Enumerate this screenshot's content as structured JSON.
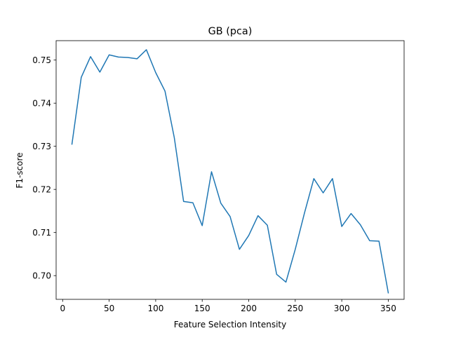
{
  "chart_data": {
    "type": "line",
    "title": "GB (pca)",
    "xlabel": "Feature Selection Intensity",
    "ylabel": "F1-score",
    "xlim": [
      -7.0,
      367.0
    ],
    "ylim": [
      0.6945,
      0.7545
    ],
    "x_ticks": [
      0,
      50,
      100,
      150,
      200,
      250,
      300,
      350
    ],
    "x_tick_labels": [
      "0",
      "50",
      "100",
      "150",
      "200",
      "250",
      "300",
      "350"
    ],
    "y_ticks": [
      0.7,
      0.71,
      0.72,
      0.73,
      0.74,
      0.75
    ],
    "y_tick_labels": [
      "0.70",
      "0.71",
      "0.72",
      "0.73",
      "0.74",
      "0.75"
    ],
    "grid": false,
    "series": [
      {
        "color": "#1f77b4",
        "x": [
          10,
          20,
          30,
          40,
          50,
          60,
          70,
          80,
          90,
          100,
          110,
          120,
          130,
          140,
          150,
          160,
          170,
          180,
          190,
          200,
          210,
          220,
          230,
          240,
          250,
          260,
          270,
          280,
          290,
          300,
          310,
          320,
          330,
          340,
          350
        ],
        "values": [
          0.7305,
          0.746,
          0.7508,
          0.7472,
          0.7512,
          0.7507,
          0.7506,
          0.7503,
          0.7524,
          0.7471,
          0.7428,
          0.732,
          0.7172,
          0.7169,
          0.7116,
          0.7241,
          0.7168,
          0.7137,
          0.7061,
          0.7093,
          0.7139,
          0.7117,
          0.7003,
          0.6985,
          0.7061,
          0.7146,
          0.7225,
          0.7192,
          0.7225,
          0.7114,
          0.7144,
          0.7118,
          0.7081,
          0.708,
          0.696
        ]
      }
    ]
  }
}
